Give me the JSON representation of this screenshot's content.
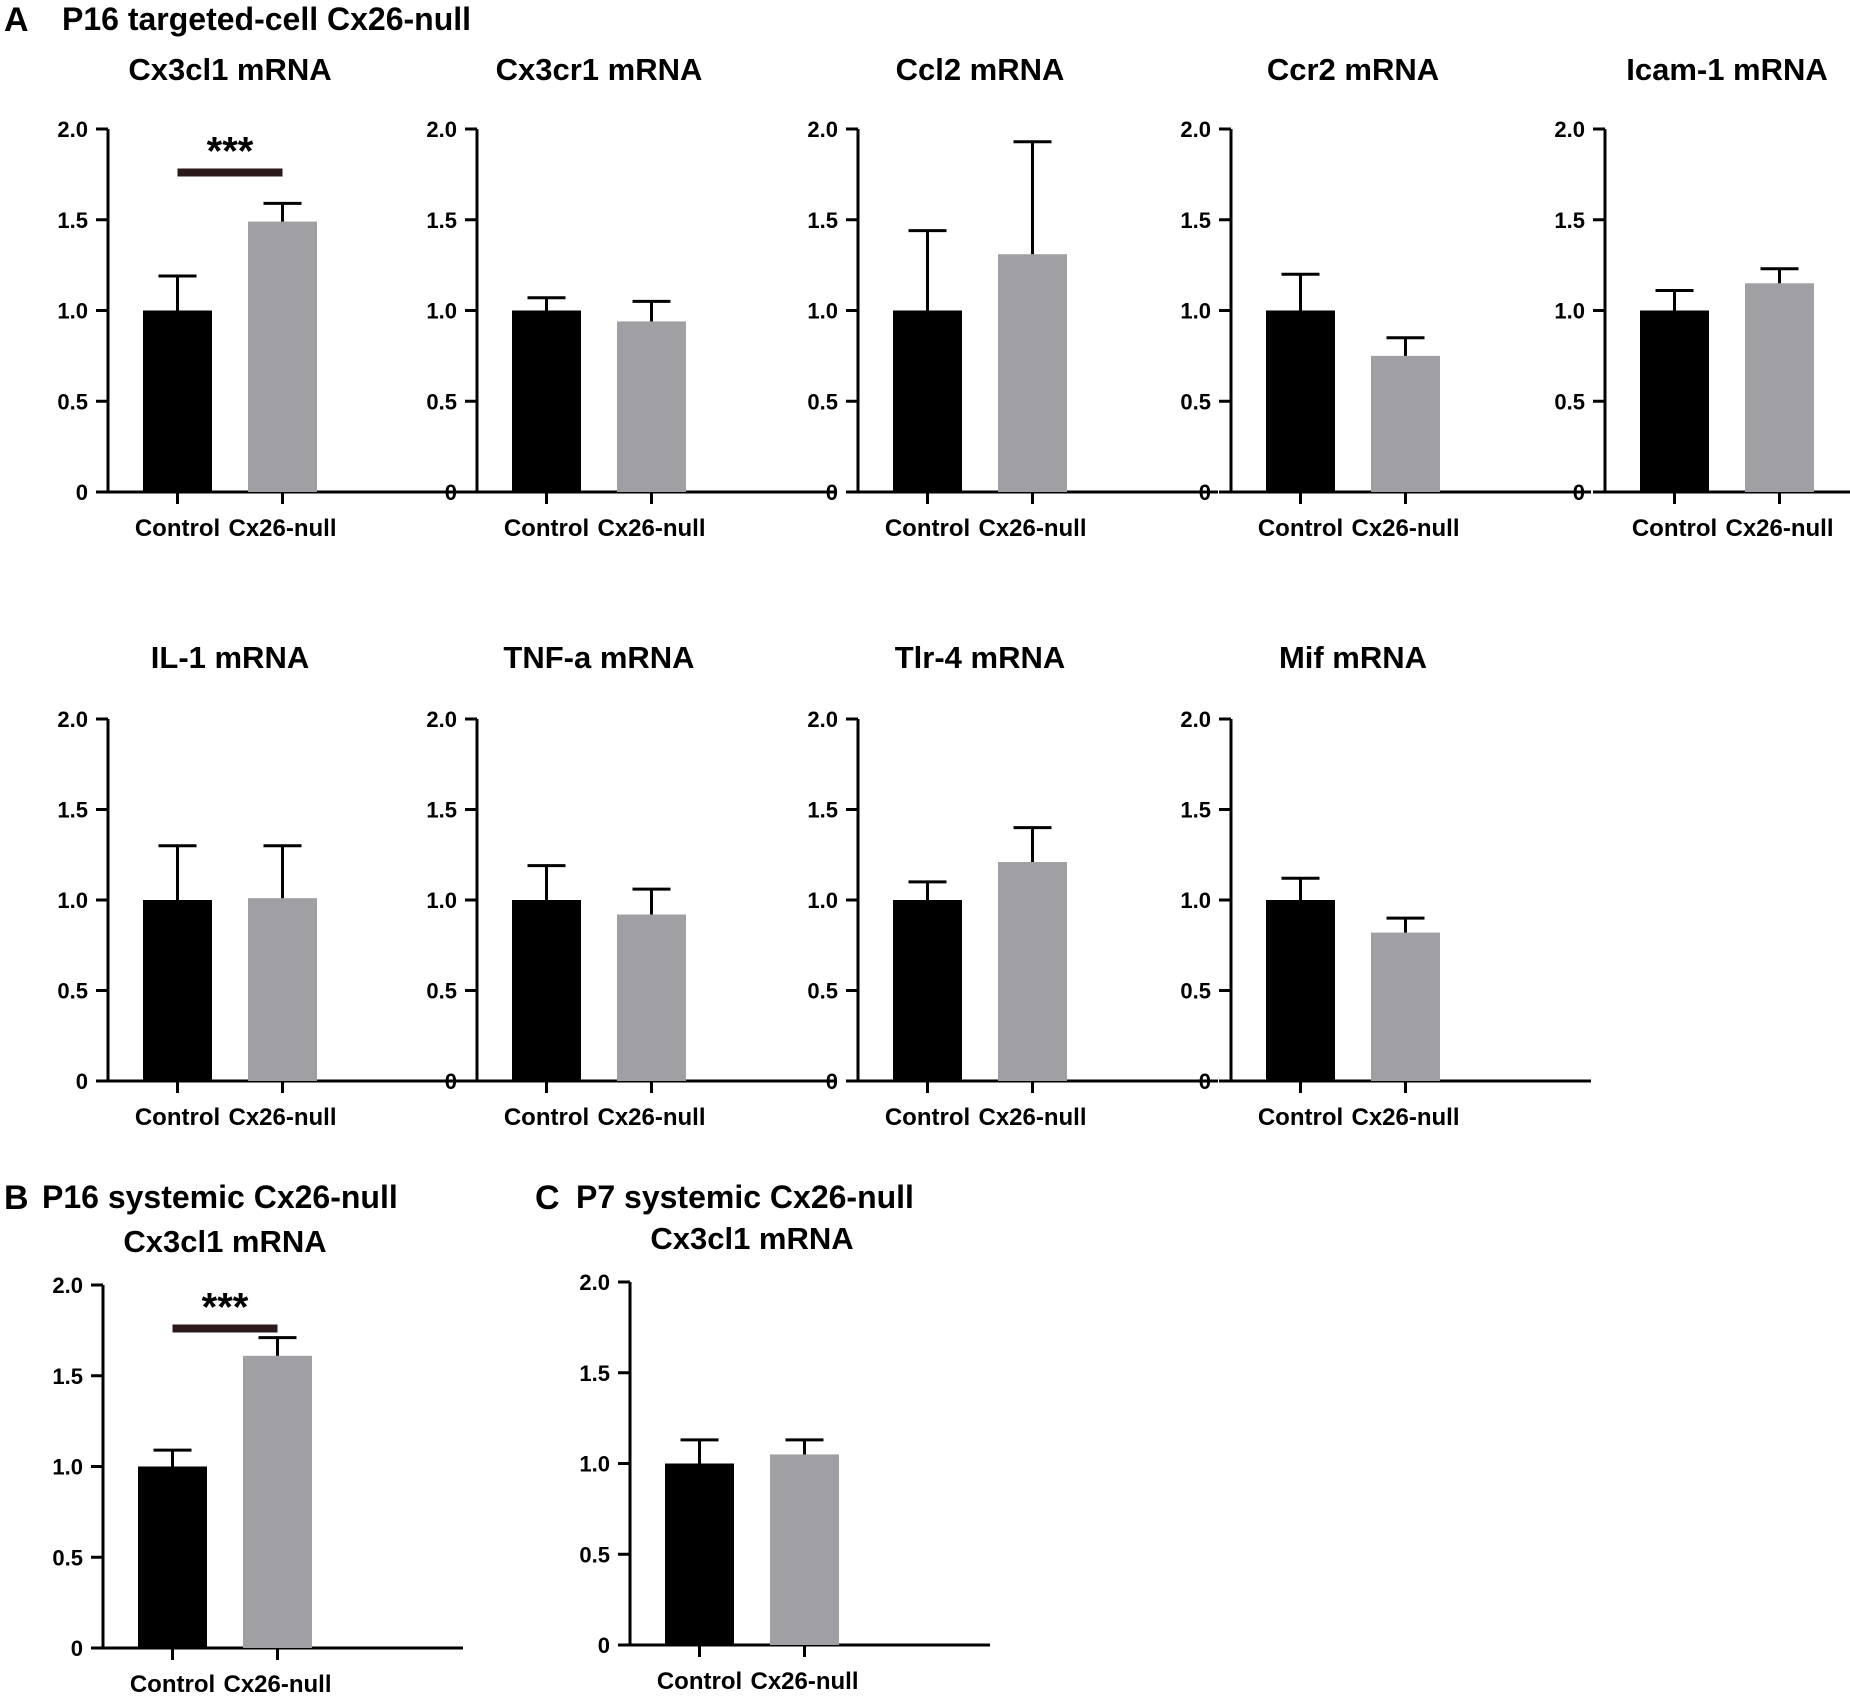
{
  "figure": {
    "sections": [
      {
        "label": "A",
        "title": "P16 targeted-cell Cx26-null"
      },
      {
        "label": "B",
        "title": "P16 systemic Cx26-null"
      },
      {
        "label": "C",
        "title": "P7 systemic Cx26-null"
      }
    ]
  },
  "chart_data": [
    {
      "type": "bar",
      "section": "A",
      "title": "Cx3cl1 mRNA",
      "categories": [
        "Control",
        "Cx26-null"
      ],
      "values": [
        1.0,
        1.49
      ],
      "errors": [
        0.19,
        0.1
      ],
      "colors": [
        "#000000",
        "#a0a0a4"
      ],
      "ylim": [
        0,
        2.0
      ],
      "yticks": [
        "0",
        "0.5",
        "1.0",
        "1.5",
        "2.0"
      ],
      "significance": "***"
    },
    {
      "type": "bar",
      "section": "A",
      "title": "Cx3cr1 mRNA",
      "categories": [
        "Control",
        "Cx26-null"
      ],
      "values": [
        1.0,
        0.94
      ],
      "errors": [
        0.07,
        0.11
      ],
      "colors": [
        "#000000",
        "#a0a0a4"
      ],
      "ylim": [
        0,
        2.0
      ],
      "yticks": [
        "0",
        "0.5",
        "1.0",
        "1.5",
        "2.0"
      ],
      "significance": ""
    },
    {
      "type": "bar",
      "section": "A",
      "title": "Ccl2 mRNA",
      "categories": [
        "Control",
        "Cx26-null"
      ],
      "values": [
        1.0,
        1.31
      ],
      "errors": [
        0.44,
        0.62
      ],
      "colors": [
        "#000000",
        "#a0a0a4"
      ],
      "ylim": [
        0,
        2.0
      ],
      "yticks": [
        "0",
        "0.5",
        "1.0",
        "1.5",
        "2.0"
      ],
      "significance": ""
    },
    {
      "type": "bar",
      "section": "A",
      "title": "Ccr2 mRNA",
      "categories": [
        "Control",
        "Cx26-null"
      ],
      "values": [
        1.0,
        0.75
      ],
      "errors": [
        0.2,
        0.1
      ],
      "colors": [
        "#000000",
        "#a0a0a4"
      ],
      "ylim": [
        0,
        2.0
      ],
      "yticks": [
        "0",
        "0.5",
        "1.0",
        "1.5",
        "2.0"
      ],
      "significance": ""
    },
    {
      "type": "bar",
      "section": "A",
      "title": "Icam-1 mRNA",
      "categories": [
        "Control",
        "Cx26-null"
      ],
      "values": [
        1.0,
        1.15
      ],
      "errors": [
        0.11,
        0.08
      ],
      "colors": [
        "#000000",
        "#a0a0a4"
      ],
      "ylim": [
        0,
        2.0
      ],
      "yticks": [
        "0",
        "0.5",
        "1.0",
        "1.5",
        "2.0"
      ],
      "significance": ""
    },
    {
      "type": "bar",
      "section": "A",
      "title": "IL-1 mRNA",
      "categories": [
        "Control",
        "Cx26-null"
      ],
      "values": [
        1.0,
        1.01
      ],
      "errors": [
        0.3,
        0.29
      ],
      "colors": [
        "#000000",
        "#a0a0a4"
      ],
      "ylim": [
        0,
        2.0
      ],
      "yticks": [
        "0",
        "0.5",
        "1.0",
        "1.5",
        "2.0"
      ],
      "significance": ""
    },
    {
      "type": "bar",
      "section": "A",
      "title": "TNF-a mRNA",
      "categories": [
        "Control",
        "Cx26-null"
      ],
      "values": [
        1.0,
        0.92
      ],
      "errors": [
        0.19,
        0.14
      ],
      "colors": [
        "#000000",
        "#a0a0a4"
      ],
      "ylim": [
        0,
        2.0
      ],
      "yticks": [
        "0",
        "0.5",
        "1.0",
        "1.5",
        "2.0"
      ],
      "significance": ""
    },
    {
      "type": "bar",
      "section": "A",
      "title": "Tlr-4 mRNA",
      "categories": [
        "Control",
        "Cx26-null"
      ],
      "values": [
        1.0,
        1.21
      ],
      "errors": [
        0.1,
        0.19
      ],
      "colors": [
        "#000000",
        "#a0a0a4"
      ],
      "ylim": [
        0,
        2.0
      ],
      "yticks": [
        "0",
        "0.5",
        "1.0",
        "1.5",
        "2.0"
      ],
      "significance": ""
    },
    {
      "type": "bar",
      "section": "A",
      "title": "Mif mRNA",
      "categories": [
        "Control",
        "Cx26-null"
      ],
      "values": [
        1.0,
        0.82
      ],
      "errors": [
        0.12,
        0.08
      ],
      "colors": [
        "#000000",
        "#a0a0a4"
      ],
      "ylim": [
        0,
        2.0
      ],
      "yticks": [
        "0",
        "0.5",
        "1.0",
        "1.5",
        "2.0"
      ],
      "significance": ""
    },
    {
      "type": "bar",
      "section": "B",
      "title": "Cx3cl1 mRNA",
      "categories": [
        "Control",
        "Cx26-null"
      ],
      "values": [
        1.0,
        1.61
      ],
      "errors": [
        0.09,
        0.1
      ],
      "colors": [
        "#000000",
        "#a0a0a4"
      ],
      "ylim": [
        0,
        2.0
      ],
      "yticks": [
        "0",
        "0.5",
        "1.0",
        "1.5",
        "2.0"
      ],
      "significance": "***"
    },
    {
      "type": "bar",
      "section": "C",
      "title": "Cx3cl1 mRNA",
      "categories": [
        "Control",
        "Cx26-null"
      ],
      "values": [
        1.0,
        1.05
      ],
      "errors": [
        0.13,
        0.08
      ],
      "colors": [
        "#000000",
        "#a0a0a4"
      ],
      "ylim": [
        0,
        2.0
      ],
      "yticks": [
        "0",
        "0.5",
        "1.0",
        "1.5",
        "2.0"
      ],
      "significance": ""
    }
  ]
}
